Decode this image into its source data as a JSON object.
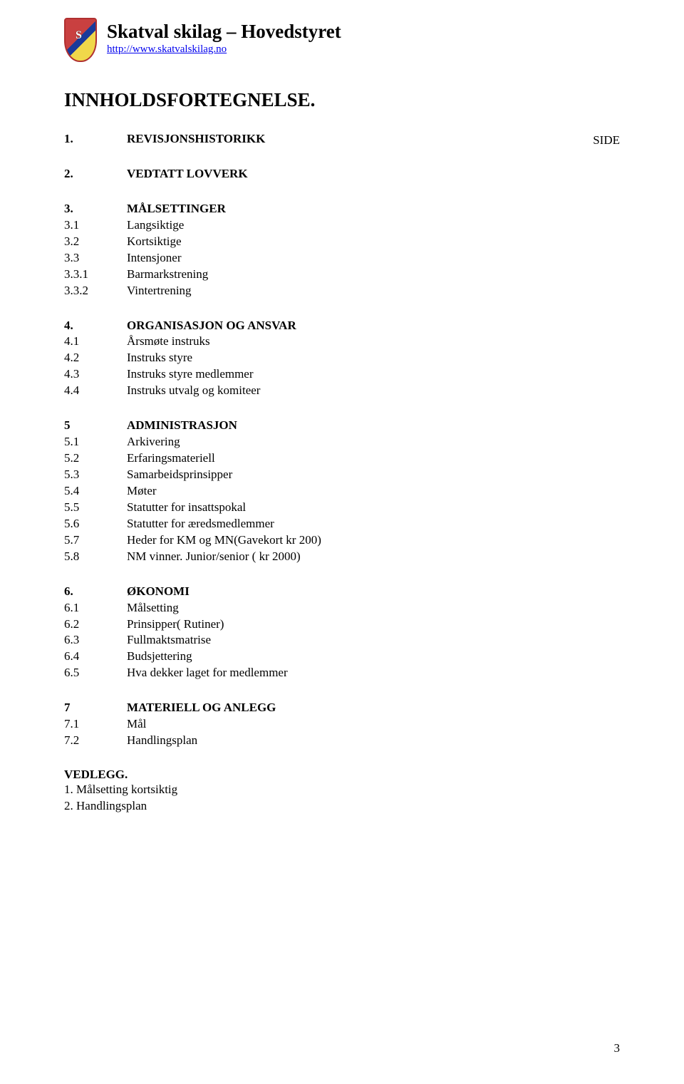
{
  "header": {
    "org_title": "Skatval skilag – Hovedstyret",
    "org_url": "http://www.skatvalskilag.no"
  },
  "main_heading": "INNHOLDSFORTEGNELSE.",
  "side_label": "SIDE",
  "toc": [
    {
      "group": [
        {
          "num": "1.",
          "label": "REVISJONSHISTORIKK",
          "bold": true
        }
      ]
    },
    {
      "group": [
        {
          "num": "2.",
          "label": "VEDTATT LOVVERK",
          "bold": true
        }
      ]
    },
    {
      "group": [
        {
          "num": "3.",
          "label": "MÅLSETTINGER",
          "bold": true
        },
        {
          "num": "3.1",
          "label": "Langsiktige",
          "bold": false
        },
        {
          "num": "3.2",
          "label": "Kortsiktige",
          "bold": false
        },
        {
          "num": "3.3",
          "label": "Intensjoner",
          "bold": false
        },
        {
          "num": "3.3.1",
          "label": "Barmarkstrening",
          "bold": false
        },
        {
          "num": "3.3.2",
          "label": "Vintertrening",
          "bold": false
        }
      ]
    },
    {
      "group": [
        {
          "num": "4.",
          "label": "ORGANISASJON OG ANSVAR",
          "bold": true
        },
        {
          "num": "4.1",
          "label": "Årsmøte instruks",
          "bold": false
        },
        {
          "num": "4.2",
          "label": "Instruks styre",
          "bold": false
        },
        {
          "num": "4.3",
          "label": "Instruks styre medlemmer",
          "bold": false
        },
        {
          "num": "4.4",
          "label": "Instruks utvalg og komiteer",
          "bold": false
        }
      ]
    },
    {
      "group": [
        {
          "num": "5",
          "label": "ADMINISTRASJON",
          "bold": true
        },
        {
          "num": "5.1",
          "label": "Arkivering",
          "bold": false
        },
        {
          "num": "5.2",
          "label": "Erfaringsmateriell",
          "bold": false
        },
        {
          "num": "5.3",
          "label": "Samarbeidsprinsipper",
          "bold": false
        },
        {
          "num": "5.4",
          "label": "Møter",
          "bold": false
        },
        {
          "num": "5.5",
          "label": "Statutter for insattspokal",
          "bold": false
        },
        {
          "num": "5.6",
          "label": "Statutter for æredsmedlemmer",
          "bold": false
        },
        {
          "num": "5.7",
          "label": "Heder for KM og MN(Gavekort kr 200)",
          "bold": false
        },
        {
          "num": "5.8",
          "label": "NM vinner. Junior/senior ( kr 2000)",
          "bold": false
        }
      ]
    },
    {
      "group": [
        {
          "num": "6.",
          "label": "ØKONOMI",
          "bold": true
        },
        {
          "num": "6.1",
          "label": "Målsetting",
          "bold": false
        },
        {
          "num": "6.2",
          "label": "Prinsipper( Rutiner)",
          "bold": false
        },
        {
          "num": "6.3",
          "label": "Fullmaktsmatrise",
          "bold": false
        },
        {
          "num": "6.4",
          "label": "Budsjettering",
          "bold": false
        },
        {
          "num": "6.5",
          "label": "Hva dekker laget for medlemmer",
          "bold": false
        }
      ]
    },
    {
      "group": [
        {
          "num": "7",
          "label": "MATERIELL OG ANLEGG",
          "bold": true
        },
        {
          "num": "7.1",
          "label": "Mål",
          "bold": false
        },
        {
          "num": "7.2",
          "label": "Handlingsplan",
          "bold": false
        }
      ]
    }
  ],
  "vedlegg": {
    "title": "VEDLEGG.",
    "items": [
      "1. Målsetting kortsiktig",
      "2. Handlingsplan"
    ]
  },
  "page_number": "3"
}
